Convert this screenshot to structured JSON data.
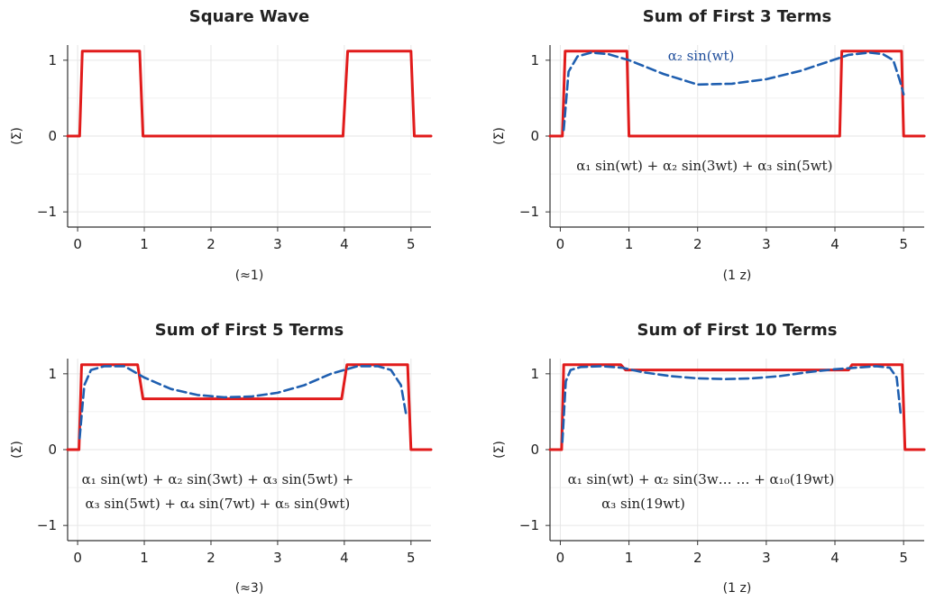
{
  "colors": {
    "square": "#e11b1b",
    "fourier": "#1f5fb0",
    "grid": "#e6e6e6",
    "axis": "#333333"
  },
  "chart_data": [
    {
      "type": "line",
      "title": "Square Wave",
      "xlabel": "(≈1)",
      "ylabel": "(Σ)",
      "xlim": [
        -0.15,
        5.3
      ],
      "ylim": [
        -1.2,
        1.2
      ],
      "xticks": [
        0,
        1,
        2,
        3,
        4,
        5
      ],
      "yticks": [
        -1,
        0,
        1
      ],
      "grid": true,
      "series": [
        {
          "role": "square",
          "x": [
            -0.15,
            0.03,
            0.07,
            0.93,
            0.98,
            3.98,
            4.05,
            5.0,
            5.05,
            5.3
          ],
          "y": [
            0,
            0,
            1.12,
            1.12,
            0,
            0,
            1.12,
            1.12,
            0,
            0
          ]
        }
      ],
      "annotations": []
    },
    {
      "type": "line",
      "title": "Sum of First 3 Terms",
      "xlabel": "(1 z)",
      "ylabel": "(Σ)",
      "xlim": [
        -0.15,
        5.3
      ],
      "ylim": [
        -1.2,
        1.2
      ],
      "xticks": [
        0,
        1,
        2,
        3,
        4,
        5
      ],
      "yticks": [
        -1,
        0,
        1
      ],
      "grid": true,
      "series": [
        {
          "role": "square",
          "x": [
            -0.15,
            0.03,
            0.07,
            0.97,
            1.0,
            4.07,
            4.1,
            4.97,
            5.0,
            5.3
          ],
          "y": [
            0,
            0,
            1.12,
            1.12,
            0,
            0,
            1.12,
            1.12,
            0,
            0
          ]
        },
        {
          "role": "fourier",
          "x": [
            0.05,
            0.12,
            0.25,
            0.45,
            0.7,
            1.0,
            1.5,
            2.0,
            2.5,
            3.0,
            3.5,
            3.9,
            4.2,
            4.5,
            4.7,
            4.85,
            4.95,
            5.0
          ],
          "y": [
            0.08,
            0.85,
            1.05,
            1.1,
            1.08,
            1.0,
            0.82,
            0.68,
            0.69,
            0.75,
            0.86,
            0.98,
            1.07,
            1.1,
            1.08,
            1.0,
            0.72,
            0.55
          ]
        }
      ],
      "annotations": [
        {
          "text": "α₂ sin(wt)",
          "x": 2.05,
          "y": 1.0,
          "color": "fourier"
        },
        {
          "text": "α₁ sin(wt) + α₂ sin(3wt) + α₃ sin(5wt)",
          "x": 2.1,
          "y": -0.45,
          "color": "text"
        }
      ]
    },
    {
      "type": "line",
      "title": "Sum of First 5 Terms",
      "xlabel": "(≈3)",
      "ylabel": "(Σ)",
      "xlim": [
        -0.15,
        5.3
      ],
      "ylim": [
        -1.2,
        1.2
      ],
      "xticks": [
        0,
        1,
        2,
        3,
        4,
        5
      ],
      "yticks": [
        -1,
        0,
        1
      ],
      "grid": true,
      "series": [
        {
          "role": "square",
          "x": [
            -0.15,
            0.02,
            0.06,
            0.9,
            0.98,
            3.96,
            4.04,
            4.95,
            5.0,
            5.3
          ],
          "y": [
            0,
            0,
            1.12,
            1.12,
            0.67,
            0.67,
            1.12,
            1.12,
            0,
            0
          ]
        },
        {
          "role": "fourier",
          "x": [
            0.03,
            0.1,
            0.2,
            0.4,
            0.7,
            1.0,
            1.4,
            1.8,
            2.2,
            2.6,
            3.0,
            3.4,
            3.8,
            4.2,
            4.5,
            4.7,
            4.85,
            4.93
          ],
          "y": [
            0.15,
            0.85,
            1.05,
            1.1,
            1.1,
            0.95,
            0.8,
            0.72,
            0.69,
            0.7,
            0.75,
            0.85,
            1.0,
            1.1,
            1.1,
            1.05,
            0.85,
            0.45
          ]
        }
      ],
      "annotations": [
        {
          "text": "α₁ sin(wt) + α₂ sin(3wt) + α₃ sin(5wt) +",
          "x": 2.1,
          "y": -0.45,
          "color": "text"
        },
        {
          "text": "α₃ sin(5wt) + α₄ sin(7wt) + α₅ sin(9wt)",
          "x": 2.1,
          "y": -0.77,
          "color": "text"
        }
      ]
    },
    {
      "type": "line",
      "title": "Sum of First 10 Terms",
      "xlabel": "(1 z)",
      "ylabel": "(Σ)",
      "xlim": [
        -0.15,
        5.3
      ],
      "ylim": [
        -1.2,
        1.2
      ],
      "xticks": [
        0,
        1,
        2,
        3,
        4,
        5
      ],
      "yticks": [
        -1,
        0,
        1
      ],
      "grid": true,
      "series": [
        {
          "role": "square",
          "x": [
            -0.15,
            0.02,
            0.05,
            0.88,
            0.95,
            4.2,
            4.25,
            4.98,
            5.02,
            5.3
          ],
          "y": [
            0,
            0,
            1.12,
            1.12,
            1.05,
            1.05,
            1.12,
            1.12,
            0,
            0
          ]
        },
        {
          "role": "fourier",
          "x": [
            0.03,
            0.08,
            0.15,
            0.3,
            0.6,
            0.9,
            1.2,
            1.6,
            2.0,
            2.4,
            2.8,
            3.2,
            3.6,
            4.0,
            4.3,
            4.6,
            4.8,
            4.9,
            4.96
          ],
          "y": [
            0.1,
            0.9,
            1.05,
            1.09,
            1.1,
            1.08,
            1.02,
            0.97,
            0.94,
            0.93,
            0.94,
            0.97,
            1.02,
            1.06,
            1.08,
            1.1,
            1.08,
            0.95,
            0.45
          ]
        }
      ],
      "annotations": [
        {
          "text": "α₁ sin(wt) + α₂ sin(3w… … + α₁₀(19wt)",
          "x": 2.05,
          "y": -0.45,
          "color": "text"
        },
        {
          "text": "α₃ sin(19wt)",
          "x": 0.6,
          "y": -0.77,
          "color": "text",
          "anchor": "start"
        }
      ]
    }
  ]
}
